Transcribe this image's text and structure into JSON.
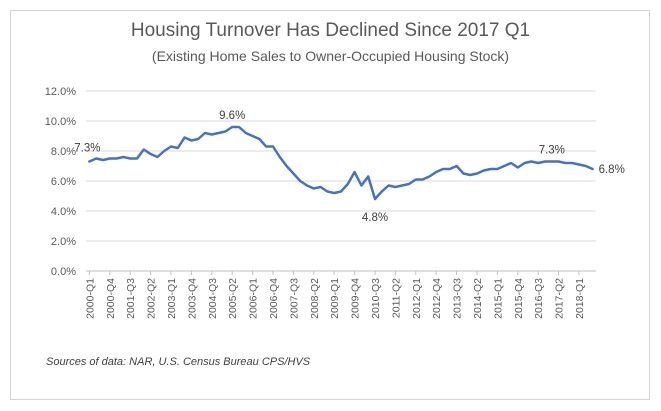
{
  "chart_data": {
    "type": "line",
    "title": "Housing Turnover Has Declined Since 2017 Q1",
    "subtitle": "(Existing Home Sales to  Owner-Occupied Housing Stock)",
    "source": "Sources of data: NAR, U.S. Census Bureau CPS/HVS",
    "xlabel": "",
    "ylabel": "",
    "ylim": [
      0,
      12
    ],
    "y_ticks": [
      "0.0%",
      "2.0%",
      "4.0%",
      "6.0%",
      "8.0%",
      "10.0%",
      "12.0%"
    ],
    "grid": true,
    "legend": "none",
    "line_color": "#4472C4",
    "x_tick_labels": [
      "2000-Q1",
      "2000-Q4",
      "2001-Q3",
      "2002-Q2",
      "2003-Q1",
      "2003-Q4",
      "2004-Q3",
      "2005-Q2",
      "2006-Q1",
      "2006-Q4",
      "2007-Q3",
      "2008-Q2",
      "2009-Q1",
      "2009-Q4",
      "2010-Q3",
      "2011-Q2",
      "2012-Q1",
      "2012-Q4",
      "2013-Q3",
      "2014-Q2",
      "2015-Q1",
      "2015-Q4",
      "2016-Q3",
      "2017-Q2",
      "2018-Q1"
    ],
    "x_tick_every": 3,
    "values": [
      7.3,
      7.5,
      7.4,
      7.5,
      7.5,
      7.6,
      7.5,
      7.5,
      8.1,
      7.8,
      7.6,
      8.0,
      8.3,
      8.2,
      8.9,
      8.7,
      8.8,
      9.2,
      9.1,
      9.2,
      9.3,
      9.6,
      9.6,
      9.2,
      9.0,
      8.8,
      8.3,
      8.3,
      7.6,
      7.0,
      6.5,
      6.0,
      5.7,
      5.5,
      5.6,
      5.3,
      5.2,
      5.3,
      5.8,
      6.6,
      5.7,
      6.3,
      4.8,
      5.3,
      5.7,
      5.6,
      5.7,
      5.8,
      6.1,
      6.1,
      6.3,
      6.6,
      6.8,
      6.8,
      7.0,
      6.5,
      6.4,
      6.5,
      6.7,
      6.8,
      6.8,
      7.0,
      7.2,
      6.9,
      7.2,
      7.3,
      7.2,
      7.3,
      7.3,
      7.3,
      7.2,
      7.2,
      7.1,
      7.0,
      6.8
    ],
    "annotations": [
      {
        "index": 0,
        "text": "7.3%"
      },
      {
        "index": 21,
        "text": "9.6%"
      },
      {
        "index": 42,
        "text": "4.8%"
      },
      {
        "index": 68,
        "text": "7.3%"
      },
      {
        "index": 74,
        "text": "6.8%"
      }
    ]
  }
}
